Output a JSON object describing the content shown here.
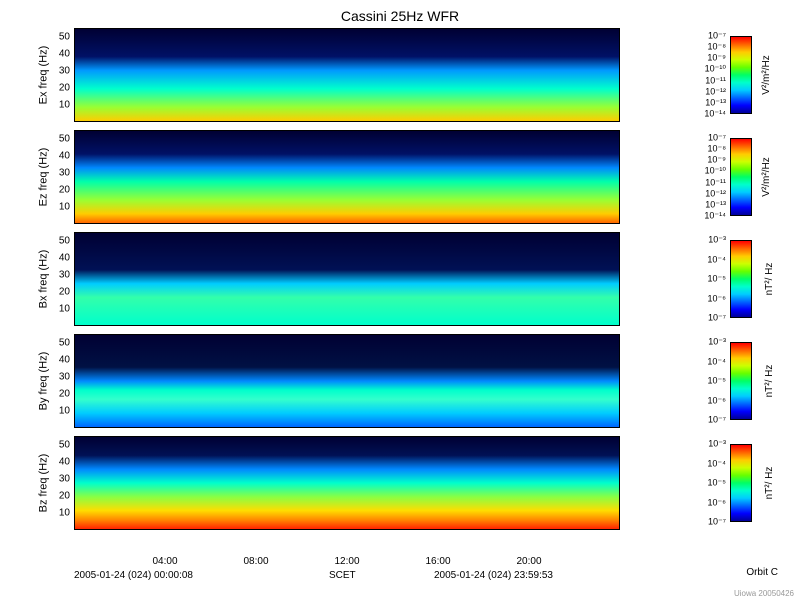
{
  "title": "Cassini 25Hz WFR",
  "panels": [
    {
      "ylabel": "Ex freq (Hz)",
      "cblabel": "V²/m²/Hz",
      "cbticks": [
        "10⁻⁷",
        "10⁻⁸",
        "10⁻⁹",
        "10⁻¹⁰",
        "10⁻¹¹",
        "10⁻¹²",
        "10⁻¹³",
        "10⁻¹⁴"
      ],
      "style": "ex"
    },
    {
      "ylabel": "Ez freq (Hz)",
      "cblabel": "V²/m²/Hz",
      "cbticks": [
        "10⁻⁷",
        "10⁻⁸",
        "10⁻⁹",
        "10⁻¹⁰",
        "10⁻¹¹",
        "10⁻¹²",
        "10⁻¹³",
        "10⁻¹⁴"
      ],
      "style": "ez"
    },
    {
      "ylabel": "Bx freq (Hz)",
      "cblabel": "nT²/ Hz",
      "cbticks": [
        "10⁻³",
        "10⁻⁴",
        "10⁻⁵",
        "10⁻⁶",
        "10⁻⁷"
      ],
      "style": "bx"
    },
    {
      "ylabel": "By freq (Hz)",
      "cblabel": "nT²/ Hz",
      "cbticks": [
        "10⁻³",
        "10⁻⁴",
        "10⁻⁵",
        "10⁻⁶",
        "10⁻⁷"
      ],
      "style": "by"
    },
    {
      "ylabel": "Bz freq (Hz)",
      "cblabel": "nT²/ Hz",
      "cbticks": [
        "10⁻³",
        "10⁻⁴",
        "10⁻⁵",
        "10⁻⁶",
        "10⁻⁷"
      ],
      "style": "bz"
    }
  ],
  "yticks": [
    10,
    20,
    30,
    40,
    50
  ],
  "xticks": [
    "04:00",
    "08:00",
    "12:00",
    "16:00",
    "20:00"
  ],
  "xrange_start": "2005-01-24 (024) 00:00:08",
  "xrange_end": "2005-01-24 (024) 23:59:53",
  "xaxis_label": "SCET",
  "orbit_label": "Orbit   C",
  "footer": "Uiowa 20050426",
  "colorbar_gradient": "linear-gradient(to bottom, #ff0000 0%, #ff6600 10%, #ffcc00 20%, #ccff00 30%, #66ff00 40%, #00ff66 50%, #00ffcc 60%, #00ccff 70%, #0066ff 80%, #0000ff 90%, #000099 100%)",
  "spectrogram_styles": {
    "ex": {
      "layers": [
        "linear-gradient(to top, #ffcc00 0%, #99ff33 15%, #00ffcc 35%, #0099ff 55%, #001166 70%, #000033 100%)",
        "repeating-linear-gradient(90deg, rgba(255,255,0,0.35) 0px, rgba(255,255,0,0.35) 1px, transparent 1px, transparent 4px)"
      ]
    },
    "ez": {
      "layers": [
        "linear-gradient(to top, #ff6600 0%, #ffcc00 10%, #99ff33 25%, #00ffaa 45%, #0088ff 60%, #001166 75%, #000033 100%)",
        "repeating-linear-gradient(90deg, rgba(255,200,0,0.4) 0px, rgba(255,200,0,0.4) 1px, transparent 1px, transparent 5px)",
        "linear-gradient(90deg, rgba(255,100,0,0.4) 0%, transparent 10%, transparent 55%, rgba(255,100,0,0.5) 65%, transparent 75%, rgba(255,80,0,0.6) 90%, rgba(255,80,0,0.6) 100%)"
      ]
    },
    "bx": {
      "layers": [
        "linear-gradient(to top, #00ffcc 0%, #33ffaa 30%, #00ccff 45%, #001155 60%, #000033 100%)",
        "repeating-linear-gradient(90deg, rgba(255,220,0,0.3) 0px, rgba(255,220,0,0.3) 1px, transparent 1px, transparent 8px)",
        "linear-gradient(to top, transparent 0%, transparent 42%, rgba(0,200,255,0.6) 44%, transparent 46%, transparent 100%)"
      ]
    },
    "by": {
      "layers": [
        "linear-gradient(to top, #0066ff 0%, #00ccff 15%, #33ffcc 30%, #00ffcc 40%, #0088ff 50%, #001144 65%, #000033 100%)",
        "repeating-linear-gradient(0deg, rgba(0,200,255,0.3) 0px, rgba(0,200,255,0.3) 1px, transparent 1px, transparent 3px)",
        "repeating-linear-gradient(90deg, rgba(255,120,0,0.4) 0px, rgba(255,120,0,0.4) 1px, transparent 1px, transparent 40px)",
        "linear-gradient(90deg, rgba(255,180,0,0.25) 0%, rgba(255,180,0,0.25) 30%, transparent 35%, transparent 100%)"
      ]
    },
    "bz": {
      "layers": [
        "linear-gradient(to top, #ff2200 0%, #ff8800 10%, #ffdd00 20%, #88ff44 35%, #00ffcc 50%, #0088ff 65%, #001155 80%, #000033 100%)",
        "repeating-linear-gradient(90deg, rgba(255,0,0,0.4) 0px, rgba(255,0,0,0.4) 1px, transparent 1px, transparent 7px)",
        "repeating-linear-gradient(90deg, rgba(0,0,200,0.4) 0px, rgba(0,0,200,0.4) 1px, transparent 1px, transparent 13px)"
      ]
    }
  }
}
